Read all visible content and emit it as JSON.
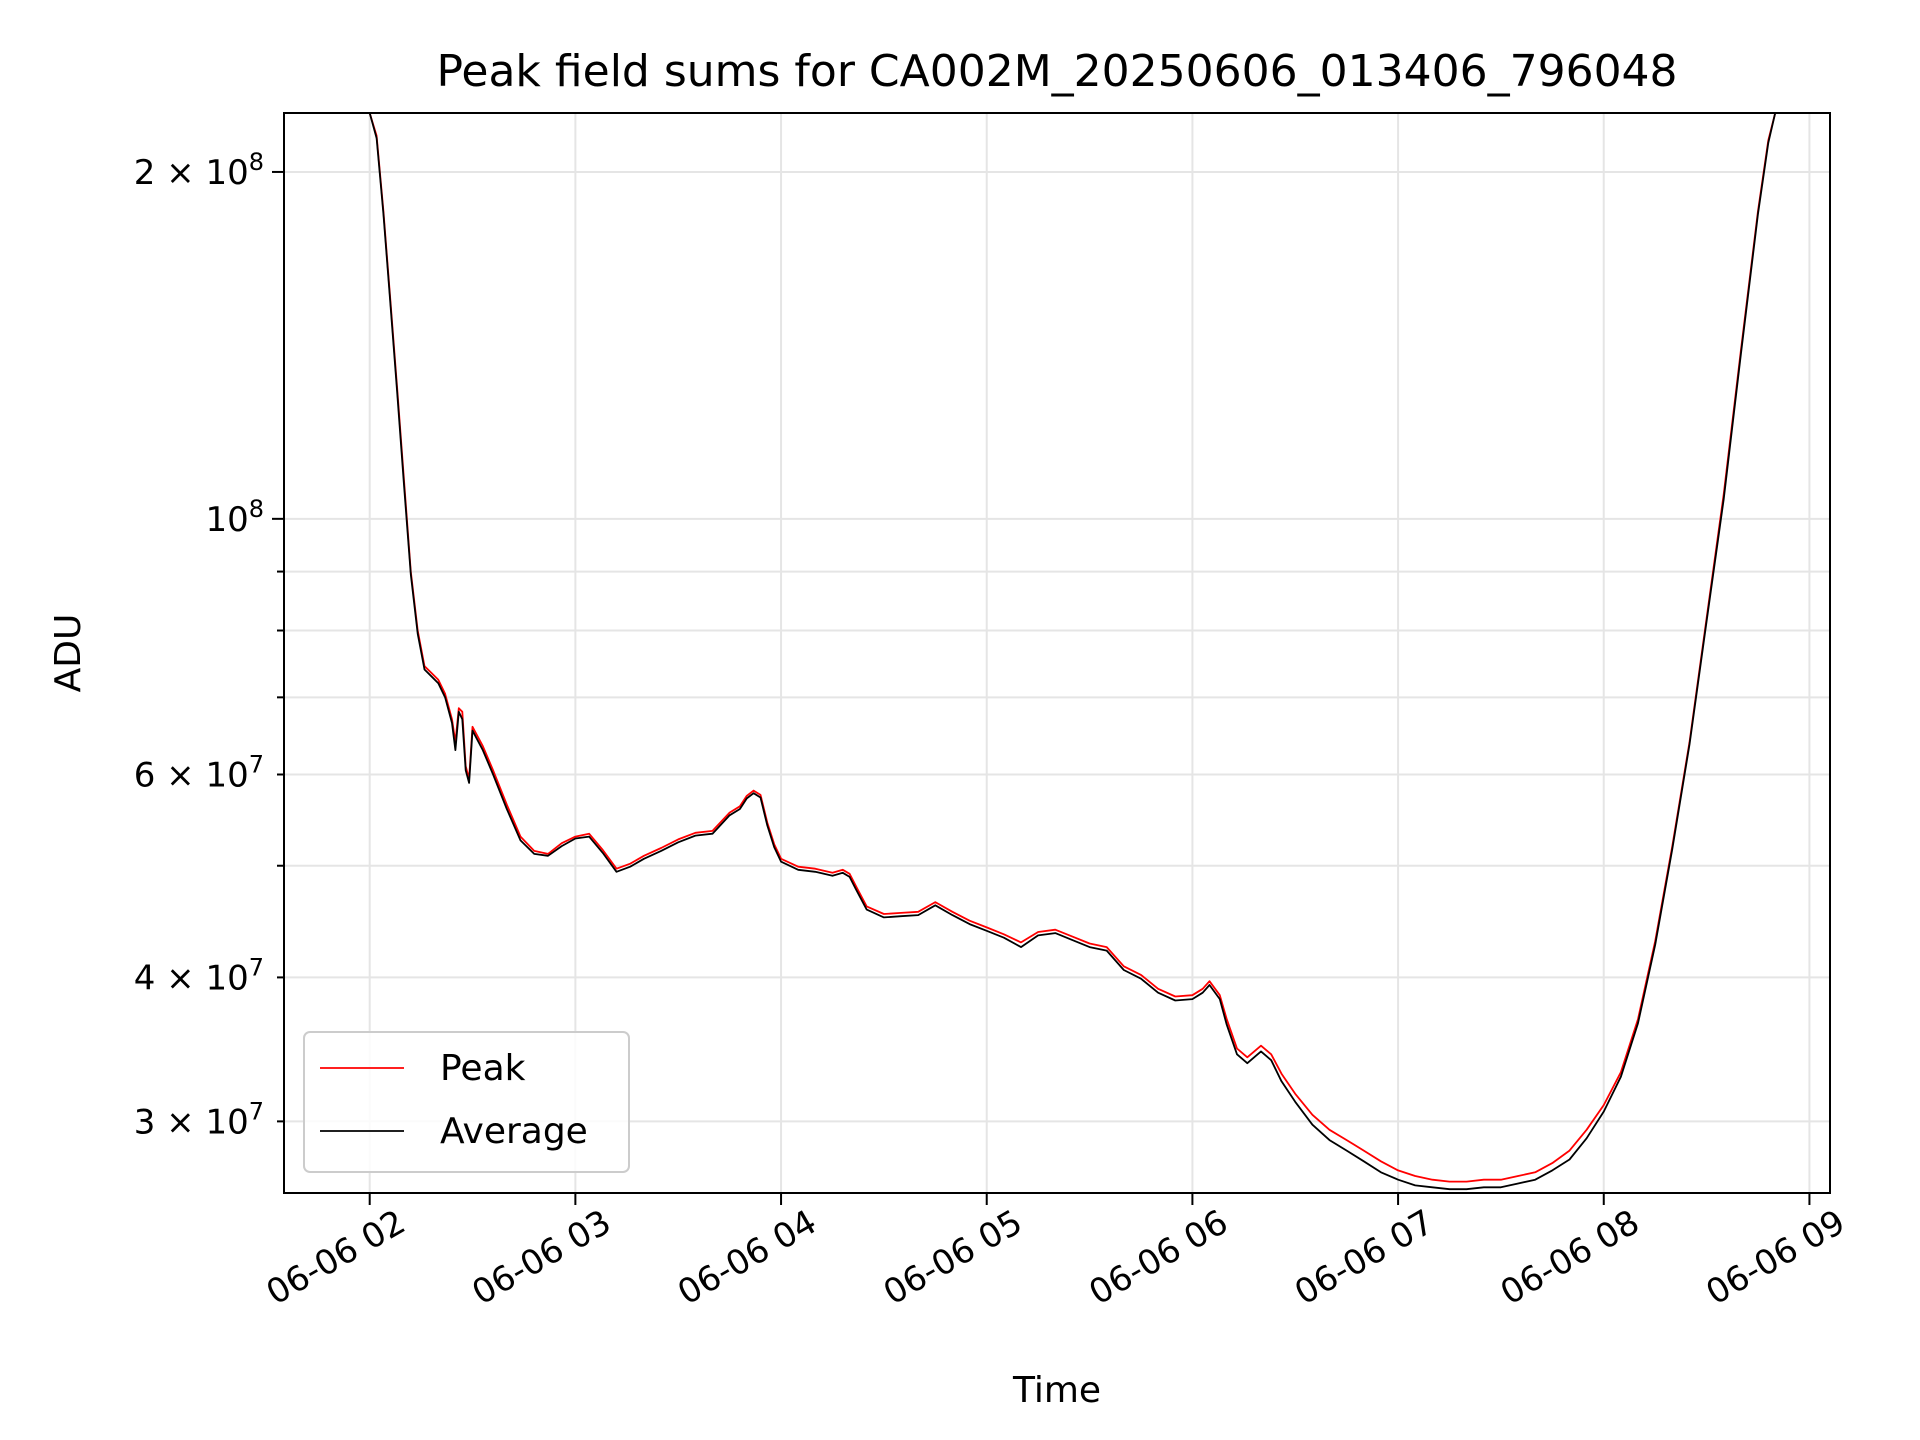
{
  "chart_data": {
    "type": "line",
    "title": "Peak field sums for CA002M_20250606_013406_796048",
    "xlabel": "Time",
    "ylabel": "ADU",
    "yscale": "log",
    "xlim": [
      "2025-06-06 01:35",
      "2025-06-06 09:06"
    ],
    "ylim": [
      26000000,
      225000000
    ],
    "grid": true,
    "legend": {
      "position": "lower-left"
    },
    "x_ticks": [
      {
        "t": "2025-06-06 02:00",
        "label": "06-06 02"
      },
      {
        "t": "2025-06-06 03:00",
        "label": "06-06 03"
      },
      {
        "t": "2025-06-06 04:00",
        "label": "06-06 04"
      },
      {
        "t": "2025-06-06 05:00",
        "label": "06-06 05"
      },
      {
        "t": "2025-06-06 06:00",
        "label": "06-06 06"
      },
      {
        "t": "2025-06-06 07:00",
        "label": "06-06 07"
      },
      {
        "t": "2025-06-06 08:00",
        "label": "06-06 08"
      },
      {
        "t": "2025-06-06 09:00",
        "label": "06-06 09"
      }
    ],
    "y_major_ticks": [
      {
        "v": 100000000,
        "mant": "",
        "base": "10",
        "exp": "8"
      },
      {
        "v": 200000000,
        "mant": "2 × ",
        "base": "10",
        "exp": "8"
      }
    ],
    "y_minor_ticks": [
      {
        "v": 30000000,
        "mant": "3 × ",
        "base": "10",
        "exp": "7"
      },
      {
        "v": 40000000,
        "mant": "4 × ",
        "base": "10",
        "exp": "7"
      },
      {
        "v": 50000000,
        "mant": "",
        "base": "",
        "exp": ""
      },
      {
        "v": 60000000,
        "mant": "6 × ",
        "base": "10",
        "exp": "7"
      },
      {
        "v": 70000000,
        "mant": "",
        "base": "",
        "exp": ""
      },
      {
        "v": 80000000,
        "mant": "",
        "base": "",
        "exp": ""
      },
      {
        "v": 90000000,
        "mant": "",
        "base": "",
        "exp": ""
      }
    ],
    "series": [
      {
        "name": "Peak",
        "color": "#ff0000",
        "points": [
          [
            "2025-06-06 02:00",
            225000000
          ],
          [
            "2025-06-06 02:02",
            215000000
          ],
          [
            "2025-06-06 02:04",
            185000000
          ],
          [
            "2025-06-06 02:06",
            155000000
          ],
          [
            "2025-06-06 02:08",
            130000000
          ],
          [
            "2025-06-06 02:10",
            108000000
          ],
          [
            "2025-06-06 02:12",
            90000000
          ],
          [
            "2025-06-06 02:14",
            80000000
          ],
          [
            "2025-06-06 02:16",
            74500000
          ],
          [
            "2025-06-06 02:18",
            73500000
          ],
          [
            "2025-06-06 02:20",
            72500000
          ],
          [
            "2025-06-06 02:22",
            70500000
          ],
          [
            "2025-06-06 02:24",
            67000000
          ],
          [
            "2025-06-06 02:25",
            64000000
          ],
          [
            "2025-06-06 02:26",
            68500000
          ],
          [
            "2025-06-06 02:27",
            68000000
          ],
          [
            "2025-06-06 02:28",
            61000000
          ],
          [
            "2025-06-06 02:29",
            59500000
          ],
          [
            "2025-06-06 02:30",
            66000000
          ],
          [
            "2025-06-06 02:33",
            63500000
          ],
          [
            "2025-06-06 02:36",
            60500000
          ],
          [
            "2025-06-06 02:40",
            56500000
          ],
          [
            "2025-06-06 02:44",
            53000000
          ],
          [
            "2025-06-06 02:48",
            51500000
          ],
          [
            "2025-06-06 02:52",
            51200000
          ],
          [
            "2025-06-06 02:56",
            52300000
          ],
          [
            "2025-06-06 03:00",
            53000000
          ],
          [
            "2025-06-06 03:04",
            53300000
          ],
          [
            "2025-06-06 03:08",
            51600000
          ],
          [
            "2025-06-06 03:12",
            49700000
          ],
          [
            "2025-06-06 03:16",
            50200000
          ],
          [
            "2025-06-06 03:20",
            51000000
          ],
          [
            "2025-06-06 03:25",
            51800000
          ],
          [
            "2025-06-06 03:30",
            52700000
          ],
          [
            "2025-06-06 03:35",
            53400000
          ],
          [
            "2025-06-06 03:40",
            53600000
          ],
          [
            "2025-06-06 03:45",
            55600000
          ],
          [
            "2025-06-06 03:48",
            56300000
          ],
          [
            "2025-06-06 03:50",
            57500000
          ],
          [
            "2025-06-06 03:52",
            58100000
          ],
          [
            "2025-06-06 03:54",
            57600000
          ],
          [
            "2025-06-06 03:56",
            54500000
          ],
          [
            "2025-06-06 03:58",
            52200000
          ],
          [
            "2025-06-06 04:00",
            50700000
          ],
          [
            "2025-06-06 04:05",
            49900000
          ],
          [
            "2025-06-06 04:10",
            49700000
          ],
          [
            "2025-06-06 04:15",
            49300000
          ],
          [
            "2025-06-06 04:18",
            49600000
          ],
          [
            "2025-06-06 04:20",
            49200000
          ],
          [
            "2025-06-06 04:22",
            47900000
          ],
          [
            "2025-06-06 04:25",
            46100000
          ],
          [
            "2025-06-06 04:30",
            45400000
          ],
          [
            "2025-06-06 04:35",
            45500000
          ],
          [
            "2025-06-06 04:40",
            45600000
          ],
          [
            "2025-06-06 04:45",
            46500000
          ],
          [
            "2025-06-06 04:50",
            45600000
          ],
          [
            "2025-06-06 04:55",
            44800000
          ],
          [
            "2025-06-06 05:00",
            44200000
          ],
          [
            "2025-06-06 05:05",
            43600000
          ],
          [
            "2025-06-06 05:10",
            42900000
          ],
          [
            "2025-06-06 05:15",
            43800000
          ],
          [
            "2025-06-06 05:20",
            44000000
          ],
          [
            "2025-06-06 05:25",
            43400000
          ],
          [
            "2025-06-06 05:30",
            42800000
          ],
          [
            "2025-06-06 05:35",
            42500000
          ],
          [
            "2025-06-06 05:40",
            40900000
          ],
          [
            "2025-06-06 05:45",
            40200000
          ],
          [
            "2025-06-06 05:50",
            39100000
          ],
          [
            "2025-06-06 05:55",
            38500000
          ],
          [
            "2025-06-06 06:00",
            38600000
          ],
          [
            "2025-06-06 06:03",
            39100000
          ],
          [
            "2025-06-06 06:05",
            39700000
          ],
          [
            "2025-06-06 06:08",
            38600000
          ],
          [
            "2025-06-06 06:10",
            36800000
          ],
          [
            "2025-06-06 06:13",
            34700000
          ],
          [
            "2025-06-06 06:16",
            34100000
          ],
          [
            "2025-06-06 06:20",
            34900000
          ],
          [
            "2025-06-06 06:23",
            34300000
          ],
          [
            "2025-06-06 06:26",
            33000000
          ],
          [
            "2025-06-06 06:30",
            31700000
          ],
          [
            "2025-06-06 06:35",
            30400000
          ],
          [
            "2025-06-06 06:40",
            29500000
          ],
          [
            "2025-06-06 06:45",
            28900000
          ],
          [
            "2025-06-06 06:50",
            28300000
          ],
          [
            "2025-06-06 06:55",
            27700000
          ],
          [
            "2025-06-06 07:00",
            27200000
          ],
          [
            "2025-06-06 07:05",
            26900000
          ],
          [
            "2025-06-06 07:10",
            26700000
          ],
          [
            "2025-06-06 07:15",
            26600000
          ],
          [
            "2025-06-06 07:20",
            26600000
          ],
          [
            "2025-06-06 07:25",
            26700000
          ],
          [
            "2025-06-06 07:30",
            26700000
          ],
          [
            "2025-06-06 07:35",
            26900000
          ],
          [
            "2025-06-06 07:40",
            27100000
          ],
          [
            "2025-06-06 07:45",
            27600000
          ],
          [
            "2025-06-06 07:50",
            28300000
          ],
          [
            "2025-06-06 07:55",
            29500000
          ],
          [
            "2025-06-06 08:00",
            31000000
          ],
          [
            "2025-06-06 08:05",
            33100000
          ],
          [
            "2025-06-06 08:10",
            36800000
          ],
          [
            "2025-06-06 08:15",
            43000000
          ],
          [
            "2025-06-06 08:20",
            52000000
          ],
          [
            "2025-06-06 08:25",
            64000000
          ],
          [
            "2025-06-06 08:30",
            82000000
          ],
          [
            "2025-06-06 08:35",
            105000000
          ],
          [
            "2025-06-06 08:40",
            140000000
          ],
          [
            "2025-06-06 08:45",
            185000000
          ],
          [
            "2025-06-06 08:48",
            213000000
          ],
          [
            "2025-06-06 08:50",
            225000000
          ],
          [
            "2025-06-06 08:55",
            225000000
          ]
        ]
      },
      {
        "name": "Average",
        "color": "#000000",
        "points": [
          [
            "2025-06-06 02:00",
            225000000
          ],
          [
            "2025-06-06 02:02",
            214000000
          ],
          [
            "2025-06-06 02:04",
            184000000
          ],
          [
            "2025-06-06 02:06",
            154000000
          ],
          [
            "2025-06-06 02:08",
            129000000
          ],
          [
            "2025-06-06 02:10",
            107000000
          ],
          [
            "2025-06-06 02:12",
            89500000
          ],
          [
            "2025-06-06 02:14",
            79500000
          ],
          [
            "2025-06-06 02:16",
            74000000
          ],
          [
            "2025-06-06 02:18",
            73000000
          ],
          [
            "2025-06-06 02:20",
            72000000
          ],
          [
            "2025-06-06 02:22",
            70000000
          ],
          [
            "2025-06-06 02:24",
            66500000
          ],
          [
            "2025-06-06 02:25",
            63000000
          ],
          [
            "2025-06-06 02:26",
            68000000
          ],
          [
            "2025-06-06 02:27",
            67000000
          ],
          [
            "2025-06-06 02:28",
            60500000
          ],
          [
            "2025-06-06 02:29",
            59000000
          ],
          [
            "2025-06-06 02:30",
            65500000
          ],
          [
            "2025-06-06 02:33",
            63000000
          ],
          [
            "2025-06-06 02:36",
            60000000
          ],
          [
            "2025-06-06 02:40",
            56000000
          ],
          [
            "2025-06-06 02:44",
            52600000
          ],
          [
            "2025-06-06 02:48",
            51200000
          ],
          [
            "2025-06-06 02:52",
            51000000
          ],
          [
            "2025-06-06 02:56",
            52000000
          ],
          [
            "2025-06-06 03:00",
            52800000
          ],
          [
            "2025-06-06 03:04",
            53000000
          ],
          [
            "2025-06-06 03:08",
            51300000
          ],
          [
            "2025-06-06 03:12",
            49400000
          ],
          [
            "2025-06-06 03:16",
            49900000
          ],
          [
            "2025-06-06 03:20",
            50700000
          ],
          [
            "2025-06-06 03:25",
            51500000
          ],
          [
            "2025-06-06 03:30",
            52400000
          ],
          [
            "2025-06-06 03:35",
            53100000
          ],
          [
            "2025-06-06 03:40",
            53300000
          ],
          [
            "2025-06-06 03:45",
            55300000
          ],
          [
            "2025-06-06 03:48",
            56000000
          ],
          [
            "2025-06-06 03:50",
            57200000
          ],
          [
            "2025-06-06 03:52",
            57800000
          ],
          [
            "2025-06-06 03:54",
            57300000
          ],
          [
            "2025-06-06 03:56",
            54200000
          ],
          [
            "2025-06-06 03:58",
            51900000
          ],
          [
            "2025-06-06 04:00",
            50400000
          ],
          [
            "2025-06-06 04:05",
            49600000
          ],
          [
            "2025-06-06 04:10",
            49400000
          ],
          [
            "2025-06-06 04:15",
            49000000
          ],
          [
            "2025-06-06 04:18",
            49300000
          ],
          [
            "2025-06-06 04:20",
            48900000
          ],
          [
            "2025-06-06 04:22",
            47600000
          ],
          [
            "2025-06-06 04:25",
            45800000
          ],
          [
            "2025-06-06 04:30",
            45100000
          ],
          [
            "2025-06-06 04:35",
            45200000
          ],
          [
            "2025-06-06 04:40",
            45300000
          ],
          [
            "2025-06-06 04:45",
            46200000
          ],
          [
            "2025-06-06 04:50",
            45300000
          ],
          [
            "2025-06-06 04:55",
            44500000
          ],
          [
            "2025-06-06 05:00",
            43900000
          ],
          [
            "2025-06-06 05:05",
            43300000
          ],
          [
            "2025-06-06 05:10",
            42500000
          ],
          [
            "2025-06-06 05:15",
            43500000
          ],
          [
            "2025-06-06 05:20",
            43700000
          ],
          [
            "2025-06-06 05:25",
            43100000
          ],
          [
            "2025-06-06 05:30",
            42500000
          ],
          [
            "2025-06-06 05:35",
            42200000
          ],
          [
            "2025-06-06 05:40",
            40600000
          ],
          [
            "2025-06-06 05:45",
            39900000
          ],
          [
            "2025-06-06 05:50",
            38800000
          ],
          [
            "2025-06-06 05:55",
            38200000
          ],
          [
            "2025-06-06 06:00",
            38300000
          ],
          [
            "2025-06-06 06:03",
            38800000
          ],
          [
            "2025-06-06 06:05",
            39400000
          ],
          [
            "2025-06-06 06:08",
            38300000
          ],
          [
            "2025-06-06 06:10",
            36400000
          ],
          [
            "2025-06-06 06:13",
            34300000
          ],
          [
            "2025-06-06 06:16",
            33700000
          ],
          [
            "2025-06-06 06:20",
            34500000
          ],
          [
            "2025-06-06 06:23",
            33900000
          ],
          [
            "2025-06-06 06:26",
            32500000
          ],
          [
            "2025-06-06 06:30",
            31200000
          ],
          [
            "2025-06-06 06:35",
            29800000
          ],
          [
            "2025-06-06 06:40",
            28900000
          ],
          [
            "2025-06-06 06:45",
            28300000
          ],
          [
            "2025-06-06 06:50",
            27700000
          ],
          [
            "2025-06-06 06:55",
            27100000
          ],
          [
            "2025-06-06 07:00",
            26700000
          ],
          [
            "2025-06-06 07:05",
            26400000
          ],
          [
            "2025-06-06 07:10",
            26300000
          ],
          [
            "2025-06-06 07:15",
            26200000
          ],
          [
            "2025-06-06 07:20",
            26200000
          ],
          [
            "2025-06-06 07:25",
            26300000
          ],
          [
            "2025-06-06 07:30",
            26300000
          ],
          [
            "2025-06-06 07:35",
            26500000
          ],
          [
            "2025-06-06 07:40",
            26700000
          ],
          [
            "2025-06-06 07:45",
            27200000
          ],
          [
            "2025-06-06 07:50",
            27800000
          ],
          [
            "2025-06-06 07:55",
            29000000
          ],
          [
            "2025-06-06 08:00",
            30600000
          ],
          [
            "2025-06-06 08:05",
            32800000
          ],
          [
            "2025-06-06 08:10",
            36500000
          ],
          [
            "2025-06-06 08:15",
            42700000
          ],
          [
            "2025-06-06 08:20",
            51700000
          ],
          [
            "2025-06-06 08:25",
            63700000
          ],
          [
            "2025-06-06 08:30",
            81500000
          ],
          [
            "2025-06-06 08:35",
            104000000
          ],
          [
            "2025-06-06 08:40",
            139000000
          ],
          [
            "2025-06-06 08:45",
            184000000
          ],
          [
            "2025-06-06 08:48",
            212000000
          ],
          [
            "2025-06-06 08:50",
            225000000
          ],
          [
            "2025-06-06 08:55",
            225000000
          ]
        ]
      }
    ]
  }
}
